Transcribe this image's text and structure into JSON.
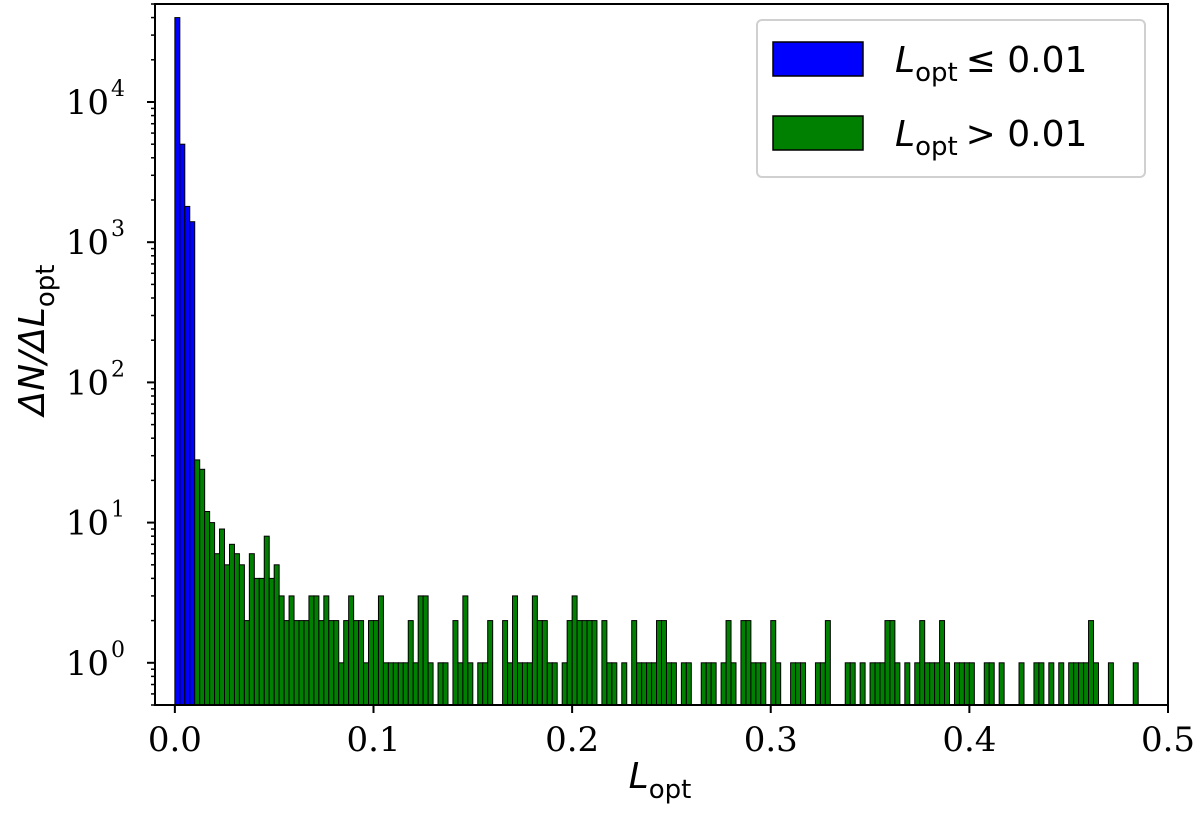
{
  "chart_data": {
    "type": "bar",
    "title": "",
    "xlabel": {
      "main": "L",
      "sub": "opt"
    },
    "ylabel": {
      "prefix": "ΔN/ΔL",
      "sub": "opt"
    },
    "xlim": [
      -0.01,
      0.5
    ],
    "ylim": [
      0.5,
      50000
    ],
    "yscale": "log",
    "bin_width": 0.0025,
    "x_ticks": [
      "0.0",
      "0.1",
      "0.2",
      "0.3",
      "0.4",
      "0.5"
    ],
    "y_ticks": [
      {
        "base": "10",
        "exp": "0"
      },
      {
        "base": "10",
        "exp": "1"
      },
      {
        "base": "10",
        "exp": "2"
      },
      {
        "base": "10",
        "exp": "3"
      },
      {
        "base": "10",
        "exp": "4"
      }
    ],
    "legend_position": "top-right",
    "series": [
      {
        "name": {
          "var": "L",
          "sub": "opt",
          "op": "≤ 0.01"
        },
        "color": "#0000ff",
        "bin_starts": [
          0.0,
          0.0025,
          0.005,
          0.0075
        ],
        "values": [
          40000,
          5000,
          1800,
          1400
        ]
      },
      {
        "name": {
          "var": "L",
          "sub": "opt",
          "op": "> 0.01"
        },
        "color": "#008000",
        "bin_starts": [
          0.01,
          0.0125,
          0.015,
          0.0175,
          0.02,
          0.0225,
          0.025,
          0.0275,
          0.03,
          0.0325,
          0.035,
          0.0375,
          0.04,
          0.0425,
          0.045,
          0.0475,
          0.05,
          0.0525,
          0.055,
          0.0575,
          0.06,
          0.0625,
          0.065,
          0.0675,
          0.07,
          0.0725,
          0.075,
          0.0775,
          0.08,
          0.0825,
          0.085,
          0.0875,
          0.09,
          0.0925,
          0.095,
          0.0975,
          0.1,
          0.1025,
          0.105,
          0.1075,
          0.11,
          0.1125,
          0.115,
          0.1175,
          0.12,
          0.1225,
          0.125,
          0.1275,
          0.13,
          0.1325,
          0.135,
          0.1375,
          0.14,
          0.1425,
          0.145,
          0.1475,
          0.15,
          0.1525,
          0.155,
          0.1575,
          0.16,
          0.1625,
          0.165,
          0.1675,
          0.17,
          0.1725,
          0.175,
          0.1775,
          0.18,
          0.1825,
          0.185,
          0.1875,
          0.19,
          0.1925,
          0.195,
          0.1975,
          0.2,
          0.2025,
          0.205,
          0.2075,
          0.21,
          0.2125,
          0.215,
          0.2175,
          0.22,
          0.2225,
          0.225,
          0.2275,
          0.23,
          0.2325,
          0.235,
          0.2375,
          0.24,
          0.2425,
          0.245,
          0.2475,
          0.25,
          0.2525,
          0.255,
          0.2575,
          0.26,
          0.2625,
          0.265,
          0.2675,
          0.27,
          0.2725,
          0.275,
          0.2775,
          0.28,
          0.2825,
          0.285,
          0.2875,
          0.29,
          0.2925,
          0.295,
          0.2975,
          0.3,
          0.3025,
          0.305,
          0.3075,
          0.31,
          0.3125,
          0.315,
          0.3175,
          0.32,
          0.3225,
          0.325,
          0.3275,
          0.33,
          0.3325,
          0.335,
          0.3375,
          0.34,
          0.3425,
          0.345,
          0.3475,
          0.35,
          0.3525,
          0.355,
          0.3575,
          0.36,
          0.3625,
          0.365,
          0.3675,
          0.37,
          0.3725,
          0.375,
          0.3775,
          0.38,
          0.3825,
          0.385,
          0.3875,
          0.39,
          0.3925,
          0.395,
          0.3975,
          0.4,
          0.4025,
          0.405,
          0.4075,
          0.41,
          0.4125,
          0.415,
          0.4175,
          0.42,
          0.4225,
          0.425,
          0.4275,
          0.43,
          0.4325,
          0.435,
          0.4375,
          0.44,
          0.4425,
          0.445,
          0.4475,
          0.45,
          0.4525,
          0.455,
          0.4575,
          0.46,
          0.4625,
          0.465,
          0.4675,
          0.47,
          0.4725,
          0.475,
          0.4775,
          0.48,
          0.4825,
          0.485,
          0.4875,
          0.49,
          0.4925,
          0.495,
          0.4975
        ],
        "values": [
          28,
          24,
          12,
          10,
          6,
          9,
          5,
          7,
          6,
          5,
          2,
          6,
          4,
          4,
          8,
          4,
          5,
          3,
          2,
          3,
          2,
          2,
          2,
          3,
          3,
          2,
          3,
          2,
          2,
          1,
          2,
          3,
          2,
          2,
          1,
          2,
          2,
          3,
          1,
          1,
          1,
          1,
          1,
          2,
          1,
          3,
          3,
          1,
          0,
          1,
          1,
          0,
          2,
          1,
          3,
          1,
          0,
          1,
          1,
          2,
          0,
          0,
          2,
          1,
          3,
          1,
          1,
          1,
          3,
          2,
          2,
          1,
          1,
          0,
          1,
          2,
          3,
          2,
          2,
          2,
          2,
          0,
          2,
          1,
          1,
          0,
          1,
          0,
          2,
          1,
          1,
          1,
          1,
          2,
          2,
          1,
          1,
          0,
          1,
          1,
          0,
          0,
          1,
          1,
          1,
          0,
          1,
          2,
          1,
          0,
          2,
          2,
          1,
          1,
          1,
          0,
          2,
          1,
          0,
          0,
          1,
          1,
          1,
          0,
          0,
          1,
          1,
          2,
          0,
          0,
          0,
          1,
          1,
          0,
          1,
          0,
          1,
          1,
          1,
          2,
          2,
          1,
          0,
          1,
          0,
          1,
          2,
          1,
          1,
          1,
          2,
          1,
          0,
          1,
          1,
          1,
          1,
          0,
          0,
          1,
          1,
          0,
          1,
          0,
          0,
          0,
          1,
          0,
          0,
          1,
          1,
          0,
          1,
          0,
          1,
          0,
          1,
          1,
          1,
          1,
          2,
          1,
          0,
          0,
          1,
          0,
          0,
          0,
          0,
          1
        ]
      }
    ]
  }
}
